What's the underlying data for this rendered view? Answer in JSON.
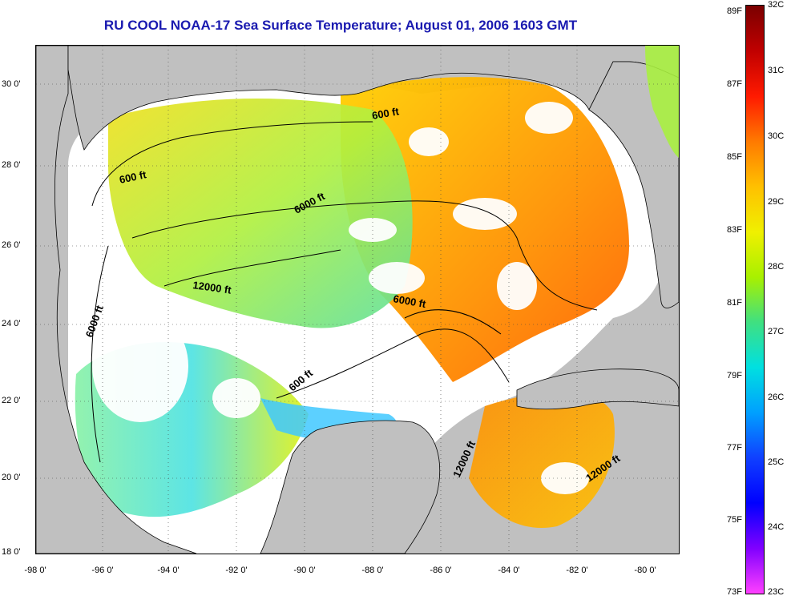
{
  "title": "RU COOL  NOAA-17  Sea Surface Temperature;  August 01, 2006 1603 GMT",
  "lat_ticks": [
    "30 0'",
    "28 0'",
    "26 0'",
    "24 0'",
    "22 0'",
    "20 0'",
    "18 0'"
  ],
  "lon_ticks": [
    "-98 0'",
    "-96 0'",
    "-94 0'",
    "-92 0'",
    "-90 0'",
    "-88 0'",
    "-86 0'",
    "-84 0'",
    "-82 0'",
    "-80 0'"
  ],
  "colorbar": {
    "fahrenheit": [
      "89F",
      "87F",
      "85F",
      "83F",
      "81F",
      "79F",
      "77F",
      "75F",
      "73F"
    ],
    "celsius": [
      "32C",
      "31C",
      "30C",
      "29C",
      "28C",
      "27C",
      "26C",
      "25C",
      "24C",
      "23C"
    ],
    "colors": [
      "#7a0000",
      "#c00000",
      "#ff1a00",
      "#ff7a00",
      "#ffc000",
      "#f0f000",
      "#a8f000",
      "#40e080",
      "#00e0e0",
      "#00a0ff",
      "#1040ff",
      "#0000ff",
      "#8000ff",
      "#ff40ff"
    ]
  },
  "contours": [
    {
      "label": "600 ft"
    },
    {
      "label": "600 ft"
    },
    {
      "label": "6000 ft"
    },
    {
      "label": "6000 ft"
    },
    {
      "label": "6000 ft"
    },
    {
      "label": "12000 ft"
    },
    {
      "label": "600 ft"
    },
    {
      "label": "12000 ft"
    },
    {
      "label": "12000 ft"
    }
  ],
  "land_color": "#c0c0c0",
  "cloud_color": "#ffffff"
}
